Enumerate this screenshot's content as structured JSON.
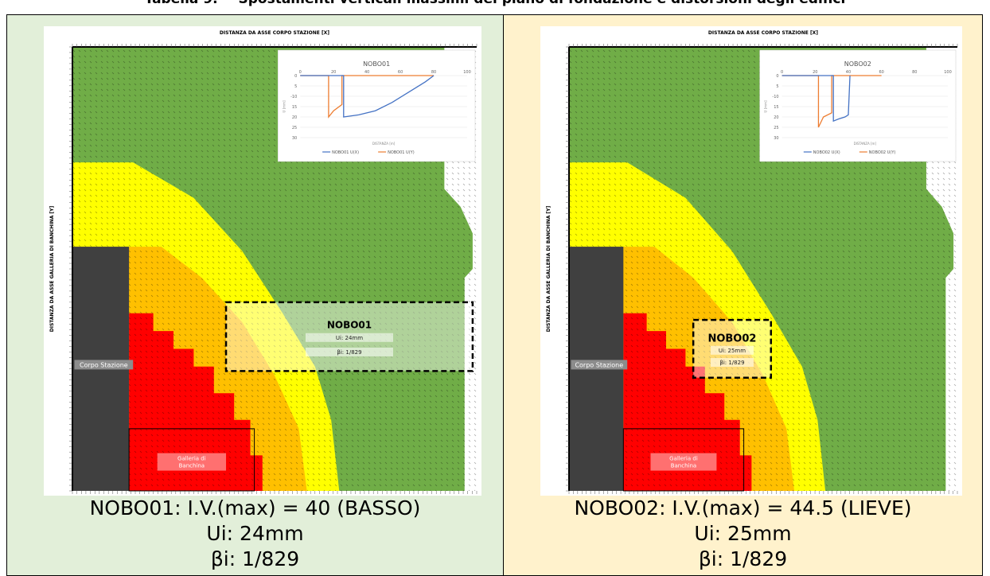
{
  "caption": {
    "label": "Tabella 9.",
    "text": "Spostamenti verticali massimi del piano di fondazione e distorsioni degli edifici"
  },
  "panels": [
    {
      "id": "left",
      "axis_x_title": "DISTANZA DA ASSE CORPO STAZIONE [X]",
      "axis_y_title": "DISTANZA DA ASSE GALLERIA DI BANCHINA [Y]",
      "inset_title": "NOBO01",
      "inset_xticks": [
        "0",
        "20",
        "40",
        "60",
        "80",
        "100"
      ],
      "inset_yticks": [
        "0",
        "5",
        "-10",
        "15",
        "20",
        "25",
        "30"
      ],
      "inset_xlabel": "DISTANZA [m]",
      "inset_ylabel": "U [mm]",
      "inset_legend": [
        "NOBO01 U(X)",
        "NOBO01 U(Y)"
      ],
      "corpo_label": "Corpo Stazione",
      "galleria_label": "Galleria di Banchina",
      "building_name": "NOBO01",
      "building_ui": "Ui: 24mm",
      "building_bi": "βi: 1/829",
      "footer": [
        "NOBO01: I.V.(max) = 40 (BASSO)",
        "Ui: 24mm",
        "βi:  1/829"
      ],
      "colors": {
        "red": "#ff0000",
        "orange": "#ffc000",
        "yellow": "#ffff00",
        "green": "#70ad47",
        "grey": "#404040"
      }
    },
    {
      "id": "right",
      "axis_x_title": "DISTANZA DA ASSE CORPO STAZIONE [X]",
      "axis_y_title": "DISTANZA DA ASSE GALLERIA DI BANCHINA [Y]",
      "inset_title": "NOBO02",
      "inset_xticks": [
        "0",
        "20",
        "40",
        "60",
        "80",
        "100"
      ],
      "inset_yticks": [
        "0",
        "5",
        "-10",
        "15",
        "20",
        "25",
        "30"
      ],
      "inset_xlabel": "DISTANZA [m]",
      "inset_ylabel": "U [mm]",
      "inset_legend": [
        "NOBO02 U(X)",
        "NOBO02 U(Y)"
      ],
      "corpo_label": "Corpo Stazione",
      "galleria_label": "Galleria di Banchina",
      "building_name": "NOBO02",
      "building_ui": "Ui: 25mm",
      "building_bi": "βi: 1/829",
      "footer": [
        "NOBO02: I.V.(max) = 44.5 (LIEVE)",
        "Ui: 25mm",
        "βi:  1/829"
      ],
      "colors": {
        "red": "#ff0000",
        "orange": "#ffc000",
        "yellow": "#ffff00",
        "green": "#70ad47",
        "grey": "#404040"
      }
    }
  ]
}
